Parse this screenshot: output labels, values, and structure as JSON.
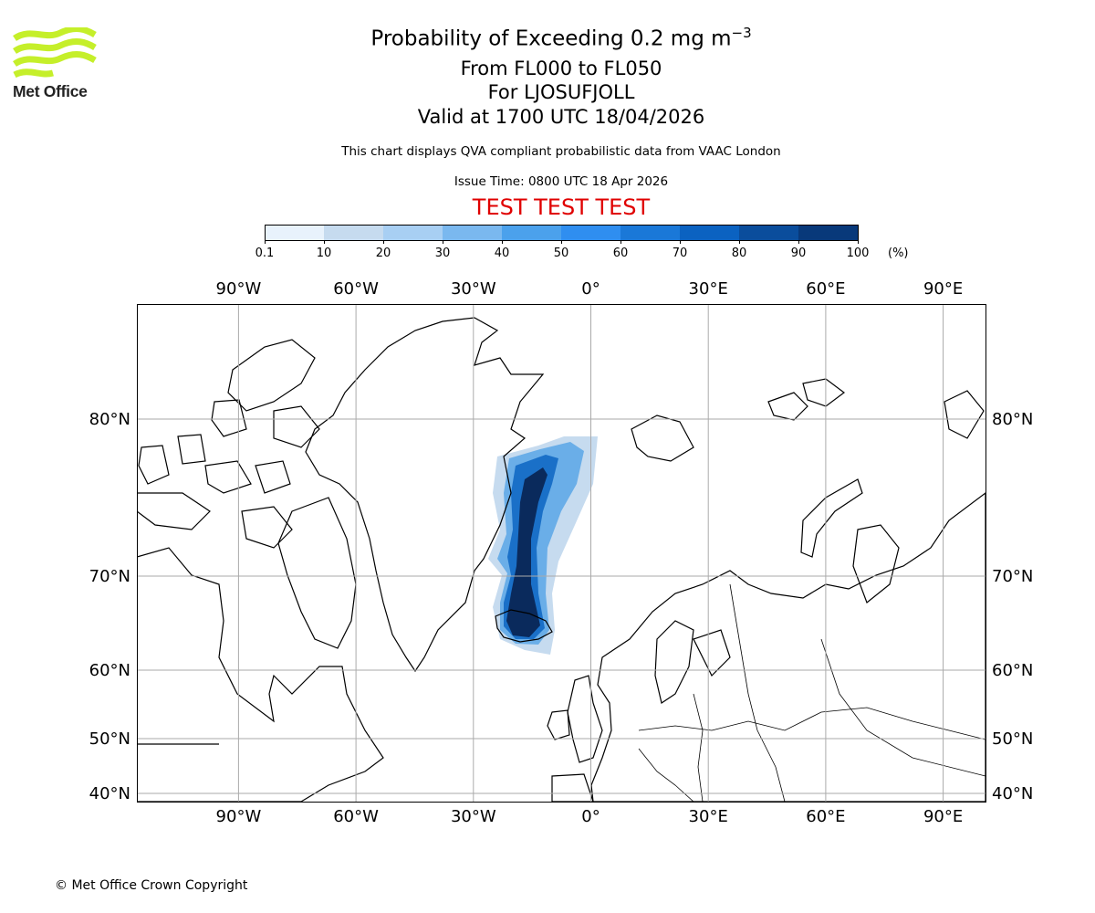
{
  "title": {
    "main": "Probability of Exceeding 0.2 mg m",
    "main_exponent": "−3",
    "levels": "From FL000 to FL050",
    "volcano": "For LJOSUFJOLL",
    "valid": "Valid at 1700 UTC 18/04/2026"
  },
  "subtitle": "This chart displays QVA compliant probabilistic data from VAAC London",
  "issue_time": "Issue Time: 0800 UTC 18 Apr 2026",
  "test_banner": "TEST TEST TEST",
  "logo_text": "Met Office",
  "copyright": "© Met Office Crown Copyright",
  "colorbar": {
    "ticks": [
      "0.1",
      "10",
      "20",
      "30",
      "40",
      "50",
      "60",
      "70",
      "80",
      "90",
      "100"
    ],
    "unit": "(%)",
    "colors": [
      "#e8f2fc",
      "#c6dbef",
      "#a8cff3",
      "#7ab8ef",
      "#4ba1ec",
      "#2f8ef0",
      "#1a78d8",
      "#0b62c1",
      "#0a4d9c",
      "#08397a",
      "#0a2a5c"
    ]
  },
  "map": {
    "lon_labels": [
      "90°W",
      "60°W",
      "30°W",
      "0°",
      "30°E",
      "60°E",
      "90°E"
    ],
    "lat_labels": [
      "80°N",
      "70°N",
      "60°N",
      "50°N",
      "40°N"
    ],
    "lon_values": [
      -90,
      -60,
      -30,
      0,
      30,
      60,
      90
    ],
    "lat_values": [
      80,
      70,
      60,
      50,
      40
    ]
  }
}
